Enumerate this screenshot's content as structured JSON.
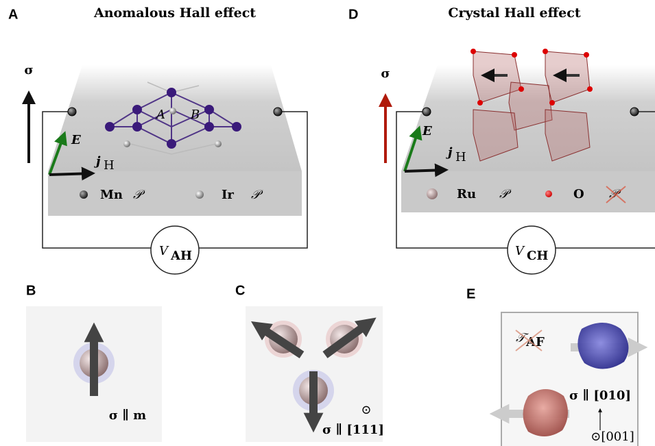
{
  "panel_a": {
    "label": "A",
    "title": "Anomalous Hall effect",
    "sigma": "σ",
    "field": "E",
    "current": "j",
    "current_sub": "H",
    "sites": [
      "A",
      "B"
    ],
    "legend": [
      {
        "atom": "Mn",
        "symmetry": "𝒫"
      },
      {
        "atom": "Ir",
        "symmetry": "𝒫"
      }
    ],
    "voltage": "V",
    "voltage_sub": "AH"
  },
  "panel_d": {
    "label": "D",
    "title": "Crystal Hall effect",
    "sigma": "σ",
    "field": "E",
    "current": "j",
    "current_sub": "H",
    "legend": [
      {
        "atom": "Ru",
        "symmetry": "𝒫"
      },
      {
        "atom": "O",
        "symmetry": "𝒫"
      }
    ],
    "voltage": "V",
    "voltage_sub": "CH"
  },
  "panel_b": {
    "label": "B",
    "caption": "σ ∥ m"
  },
  "panel_c": {
    "label": "C",
    "out_of_plane": "⊙",
    "caption": "σ ∥ [111]"
  },
  "panel_e": {
    "label": "E",
    "symmetry": "𝒯",
    "symmetry_sub": "AF",
    "caption": "σ ∥ [010]",
    "axis": "⊙[001]"
  }
}
